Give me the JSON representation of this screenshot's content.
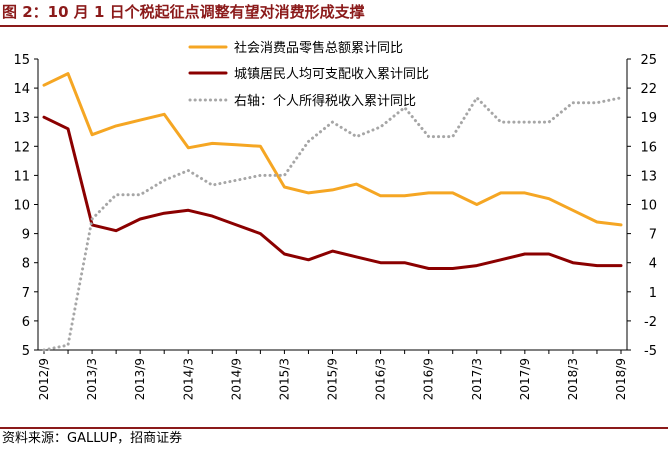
{
  "header": {
    "title": "图 2：10 月 1 日个税起征点调整有望对消费形成支撑"
  },
  "footer": {
    "source": "资料来源：GALLUP，招商证券"
  },
  "colors": {
    "orange": "#F5A623",
    "darkred": "#8B0000",
    "gray": "#A6A6A6",
    "accent": "#8B1A1A"
  },
  "chart_data": {
    "type": "line",
    "x": [
      "2012/9",
      "2012/12",
      "2013/3",
      "2013/6",
      "2013/9",
      "2013/12",
      "2014/3",
      "2014/6",
      "2014/9",
      "2014/12",
      "2015/3",
      "2015/6",
      "2015/9",
      "2015/12",
      "2016/3",
      "2016/6",
      "2016/9",
      "2016/12",
      "2017/3",
      "2017/6",
      "2017/9",
      "2017/12",
      "2018/3",
      "2018/6",
      "2018/9"
    ],
    "x_tick_labels": [
      "2012/9",
      "2013/3",
      "2013/9",
      "2014/3",
      "2014/9",
      "2015/3",
      "2015/9",
      "2016/3",
      "2016/9",
      "2017/3",
      "2017/9",
      "2018/3",
      "2018/9"
    ],
    "y_left": {
      "min": 5,
      "max": 15,
      "step": 1
    },
    "y_right": {
      "min": -5,
      "max": 25,
      "ticks": [
        -5,
        -2,
        1,
        4,
        7,
        10,
        13,
        16,
        19,
        22,
        25
      ]
    },
    "series": [
      {
        "name": "社会消费品零售总额累计同比",
        "axis": "left",
        "style": "solid",
        "color": "#F5A623",
        "values": [
          14.1,
          14.5,
          12.4,
          12.7,
          12.9,
          13.1,
          11.95,
          12.1,
          12.05,
          12.0,
          10.6,
          10.4,
          10.5,
          10.7,
          10.3,
          10.3,
          10.4,
          10.4,
          10.0,
          10.4,
          10.4,
          10.2,
          9.8,
          9.4,
          9.3
        ]
      },
      {
        "name": "城镇居民人均可支配收入累计同比",
        "axis": "left",
        "style": "solid",
        "color": "#8B0000",
        "values": [
          13.0,
          12.6,
          9.3,
          9.1,
          9.5,
          9.7,
          9.8,
          9.6,
          9.3,
          9.0,
          8.3,
          8.1,
          8.4,
          8.2,
          8.0,
          8.0,
          7.8,
          7.8,
          7.9,
          8.1,
          8.3,
          8.3,
          8.0,
          7.9,
          7.9
        ]
      },
      {
        "name": "右轴：个人所得税收入累计同比",
        "axis": "right",
        "style": "dotted",
        "color": "#A6A6A6",
        "values": [
          -6.0,
          -4.5,
          8.5,
          11.0,
          11.0,
          12.5,
          13.5,
          12.0,
          12.5,
          13.0,
          13.0,
          16.5,
          18.5,
          17.0,
          18.0,
          20.0,
          17.0,
          17.0,
          21.0,
          18.5,
          18.5,
          18.5,
          20.5,
          20.5,
          21.0
        ]
      }
    ]
  }
}
